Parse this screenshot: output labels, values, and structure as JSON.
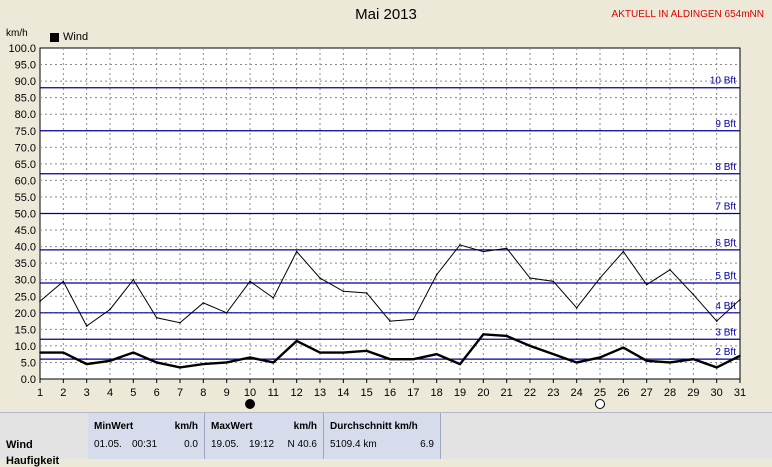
{
  "header": {
    "title": "Mai 2013",
    "station": "AKTUELL IN ALDINGEN 654mNN",
    "unit": "km/h"
  },
  "legend": {
    "label": "Wind"
  },
  "chart_data": {
    "type": "line",
    "title": "Mai 2013",
    "xlabel": "",
    "ylabel": "km/h",
    "x": [
      1,
      2,
      3,
      4,
      5,
      6,
      7,
      8,
      9,
      10,
      11,
      12,
      13,
      14,
      15,
      16,
      17,
      18,
      19,
      20,
      21,
      22,
      23,
      24,
      25,
      26,
      27,
      28,
      29,
      30,
      31
    ],
    "xlim": [
      1,
      31
    ],
    "ylim": [
      0,
      100
    ],
    "yticks": [
      0,
      5,
      10,
      15,
      20,
      25,
      30,
      35,
      40,
      45,
      50,
      55,
      60,
      65,
      70,
      75,
      80,
      85,
      90,
      95,
      100
    ],
    "grid": true,
    "legend_position": "top-left",
    "series": [
      {
        "name": "Wind",
        "color": "#000000",
        "values": [
          8.0,
          8.0,
          4.5,
          5.5,
          8.0,
          5.0,
          3.5,
          4.5,
          5.0,
          6.5,
          5.0,
          11.5,
          8.0,
          8.0,
          8.5,
          6.0,
          6.0,
          7.5,
          4.5,
          13.5,
          13.0,
          10.0,
          7.5,
          5.0,
          6.5,
          9.5,
          5.5,
          5.0,
          6.0,
          3.5,
          7.0
        ]
      },
      {
        "color": "#000000",
        "values": [
          23.5,
          29.5,
          16.0,
          21.0,
          30.0,
          18.5,
          17.0,
          23.0,
          20.0,
          29.5,
          24.5,
          38.5,
          30.5,
          26.5,
          26.0,
          17.5,
          18.0,
          31.5,
          40.5,
          38.5,
          39.5,
          30.5,
          29.5,
          21.5,
          30.5,
          38.5,
          28.5,
          33.0,
          25.5,
          17.5,
          24.0
        ]
      }
    ],
    "beaufort_lines": [
      {
        "label": "2 Bft",
        "value": 6
      },
      {
        "label": "3 Bft",
        "value": 12
      },
      {
        "label": "4 Bft",
        "value": 20
      },
      {
        "label": "5 Bft",
        "value": 29
      },
      {
        "label": "6 Bft",
        "value": 39
      },
      {
        "label": "7 Bft",
        "value": 50
      },
      {
        "label": "8 Bft",
        "value": 62
      },
      {
        "label": "9 Bft",
        "value": 75
      },
      {
        "label": "10 Bft",
        "value": 88
      }
    ],
    "moon_phases": [
      {
        "day": 10,
        "phase": "new"
      },
      {
        "day": 25,
        "phase": "full"
      }
    ],
    "colors": {
      "background": "#ffffff",
      "beaufort": "#0000a0",
      "grid": "#8a8a8a"
    }
  },
  "stats": {
    "row_label": "Wind",
    "row_label_2": "Haufigkeit",
    "min": {
      "header": "MinWert",
      "unit": "km/h",
      "date": "01.05.",
      "time": "00:31",
      "value": "0.0"
    },
    "max": {
      "header": "MaxWert",
      "unit": "km/h",
      "date": "19.05.",
      "time": "19:12",
      "value": "N 40.6"
    },
    "avg": {
      "header": "Durchschnitt km/h",
      "distance": "5109.4 km",
      "value": "6.9"
    }
  }
}
